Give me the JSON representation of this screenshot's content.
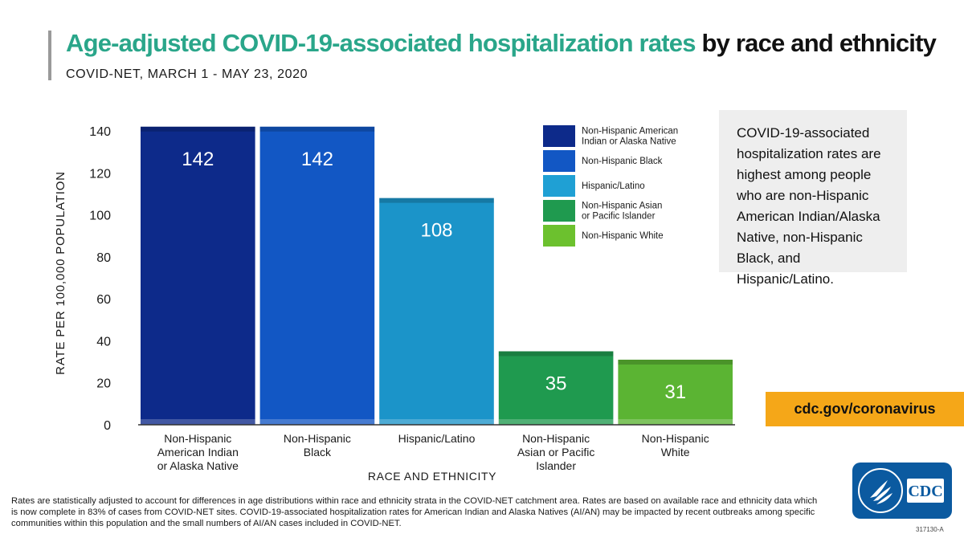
{
  "header": {
    "title_accent": "Age-adjusted COVID-19-associated hospitalization rates",
    "title_rest": "by race and ethnicity",
    "subtitle": "COVID-NET, MARCH 1 - MAY 23, 2020"
  },
  "callout": {
    "text": "COVID-19-associated hospitalization rates are highest among people who are non-Hispanic American Indian/Alaska Native, non-Hispanic Black, and Hispanic/Latino."
  },
  "url": "cdc.gov/coronavirus",
  "footnote": "Rates are statistically adjusted to account for differences in age distributions within race and ethnicity strata in the COVID-NET catchment area. Rates are based on available race and ethnicity data which is now complete in 83% of cases from COVID-NET sites. COVID-19-associated hospitalization rates for American Indian and Alaska Natives (AI/AN) may be impacted by recent outbreaks among specific communities within this population and the small numbers of AI/AN cases included in COVID-NET.",
  "logo": {
    "text": "CDC",
    "icon": "hhs-eagle-icon"
  },
  "code": "317130-A",
  "chart_data": {
    "type": "bar",
    "xlabel": "RACE AND ETHNICITY",
    "ylabel": "RATE PER 100,000 POPULATION",
    "ylim": [
      0,
      140
    ],
    "yticks": [
      0,
      20,
      40,
      60,
      80,
      100,
      120,
      140
    ],
    "grid": false,
    "legend_position": "top-right",
    "categories": [
      [
        "Non-Hispanic",
        "American Indian",
        "or Alaska Native"
      ],
      [
        "Non-Hispanic",
        "Black"
      ],
      [
        "Hispanic/Latino"
      ],
      [
        "Non-Hispanic",
        "Asian or Pacific",
        "Islander"
      ],
      [
        "Non-Hispanic",
        "White"
      ]
    ],
    "values": [
      142,
      142,
      108,
      35,
      31
    ],
    "value_labels": [
      "142",
      "142",
      "108",
      "35",
      "31"
    ],
    "legend": [
      {
        "label": [
          "Non-Hispanic American",
          "Indian or Alaska Native"
        ],
        "color": "#0d2a8a"
      },
      {
        "label": [
          "Non-Hispanic Black"
        ],
        "color": "#1257c4"
      },
      {
        "label": [
          "Hispanic/Latino"
        ],
        "color": "#1fa0d4"
      },
      {
        "label": [
          "Non-Hispanic Asian",
          "or Pacific Islander"
        ],
        "color": "#1f9a4f"
      },
      {
        "label": [
          "Non-Hispanic White"
        ],
        "color": "#6cc12e"
      }
    ],
    "bar_colors": [
      "#0d2a8a",
      "#1257c4",
      "#1b94c9",
      "#1f9a4f",
      "#5bb433"
    ]
  }
}
